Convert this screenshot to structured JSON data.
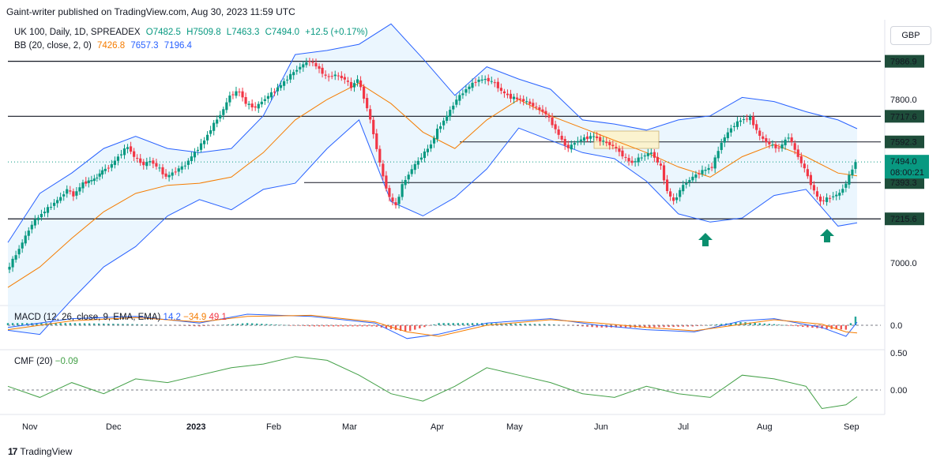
{
  "header": {
    "published": "Gaint-writer published on TradingView.com, Aug 30, 2023 11:59 UTC"
  },
  "legend": {
    "symbol": "UK 100, Daily, 1D, SPREADEX",
    "open": "O7482.5",
    "high": "H7509.8",
    "low": "L7463.3",
    "close": "C7494.0",
    "change": "+12.5 (+0.17%)",
    "bb_label": "BB (20, close, 2, 0)",
    "bb_basis": "7426.8",
    "bb_upper": "7657.3",
    "bb_lower": "7196.4"
  },
  "currency": "GBP",
  "macd_legend": {
    "label": "MACD (12, 26, close, 9, EMA, EMA)",
    "macd": "14.2",
    "signal": "−34.9",
    "hist": "49.1"
  },
  "cmf_legend": {
    "label": "CMF (20)",
    "value": "−0.09"
  },
  "footer": {
    "brand": "TradingView",
    "logo": "17"
  },
  "colors": {
    "up": "#089981",
    "down": "#f23645",
    "bb_fill": "#e3f2fd",
    "bb_band": "#2962ff",
    "bb_basis": "#f57c00",
    "cmf": "#43a047"
  },
  "arrows": [
    "up-arrow-icon",
    "up-arrow-icon"
  ],
  "chart_data": {
    "type": "line",
    "y_ticks": [
      "7800.0",
      "7000.0"
    ],
    "level_labels": [
      "7986.9",
      "7717.6",
      "7592.3",
      "7393.3",
      "7215.6"
    ],
    "current_price": "7494.0",
    "countdown": "08:00:21",
    "x_ticks": [
      "Nov",
      "Dec",
      "2023",
      "Feb",
      "Mar",
      "Apr",
      "May",
      "Jun",
      "Jul",
      "Aug",
      "Sep"
    ],
    "macd_ticks": [
      "0.0"
    ],
    "cmf_ticks": [
      "0.50",
      "0.00"
    ],
    "price_path": [
      [
        0,
        6960
      ],
      [
        6,
        7040
      ],
      [
        10,
        7100
      ],
      [
        16,
        7190
      ],
      [
        22,
        7240
      ],
      [
        28,
        7280
      ],
      [
        34,
        7320
      ],
      [
        38,
        7360
      ],
      [
        42,
        7330
      ],
      [
        48,
        7390
      ],
      [
        55,
        7410
      ],
      [
        60,
        7450
      ],
      [
        66,
        7480
      ],
      [
        70,
        7520
      ],
      [
        76,
        7570
      ],
      [
        80,
        7520
      ],
      [
        86,
        7480
      ],
      [
        90,
        7500
      ],
      [
        96,
        7460
      ],
      [
        100,
        7420
      ],
      [
        106,
        7450
      ],
      [
        112,
        7480
      ],
      [
        118,
        7540
      ],
      [
        124,
        7600
      ],
      [
        130,
        7680
      ],
      [
        136,
        7750
      ],
      [
        140,
        7820
      ],
      [
        146,
        7840
      ],
      [
        150,
        7780
      ],
      [
        156,
        7760
      ],
      [
        160,
        7790
      ],
      [
        166,
        7830
      ],
      [
        172,
        7870
      ],
      [
        178,
        7920
      ],
      [
        184,
        7960
      ],
      [
        190,
        7990
      ],
      [
        196,
        7950
      ],
      [
        200,
        7910
      ],
      [
        206,
        7920
      ],
      [
        212,
        7900
      ],
      [
        216,
        7860
      ],
      [
        220,
        7900
      ],
      [
        224,
        7810
      ],
      [
        228,
        7700
      ],
      [
        232,
        7560
      ],
      [
        236,
        7420
      ],
      [
        240,
        7320
      ],
      [
        244,
        7280
      ],
      [
        248,
        7380
      ],
      [
        254,
        7460
      ],
      [
        260,
        7520
      ],
      [
        266,
        7580
      ],
      [
        270,
        7650
      ],
      [
        276,
        7720
      ],
      [
        282,
        7800
      ],
      [
        288,
        7850
      ],
      [
        294,
        7890
      ],
      [
        300,
        7900
      ],
      [
        306,
        7880
      ],
      [
        310,
        7840
      ],
      [
        316,
        7810
      ],
      [
        322,
        7800
      ],
      [
        328,
        7780
      ],
      [
        332,
        7760
      ],
      [
        338,
        7730
      ],
      [
        342,
        7680
      ],
      [
        348,
        7600
      ],
      [
        352,
        7560
      ],
      [
        356,
        7590
      ],
      [
        362,
        7610
      ],
      [
        368,
        7620
      ],
      [
        372,
        7600
      ],
      [
        378,
        7580
      ],
      [
        382,
        7560
      ],
      [
        388,
        7510
      ],
      [
        392,
        7490
      ],
      [
        398,
        7520
      ],
      [
        404,
        7540
      ],
      [
        410,
        7470
      ],
      [
        414,
        7350
      ],
      [
        418,
        7300
      ],
      [
        424,
        7380
      ],
      [
        430,
        7420
      ],
      [
        436,
        7450
      ],
      [
        442,
        7470
      ],
      [
        448,
        7590
      ],
      [
        454,
        7660
      ],
      [
        460,
        7700
      ],
      [
        466,
        7710
      ],
      [
        472,
        7620
      ],
      [
        478,
        7580
      ],
      [
        484,
        7560
      ],
      [
        490,
        7620
      ],
      [
        496,
        7520
      ],
      [
        500,
        7460
      ],
      [
        506,
        7350
      ],
      [
        510,
        7300
      ],
      [
        516,
        7320
      ],
      [
        522,
        7340
      ],
      [
        526,
        7390
      ],
      [
        530,
        7460
      ],
      [
        532,
        7494
      ]
    ],
    "basis_path": [
      [
        0,
        6880
      ],
      [
        20,
        6980
      ],
      [
        40,
        7120
      ],
      [
        60,
        7250
      ],
      [
        80,
        7340
      ],
      [
        100,
        7380
      ],
      [
        120,
        7390
      ],
      [
        140,
        7420
      ],
      [
        160,
        7540
      ],
      [
        180,
        7700
      ],
      [
        200,
        7800
      ],
      [
        220,
        7880
      ],
      [
        240,
        7780
      ],
      [
        260,
        7640
      ],
      [
        280,
        7560
      ],
      [
        300,
        7700
      ],
      [
        320,
        7800
      ],
      [
        340,
        7720
      ],
      [
        360,
        7660
      ],
      [
        380,
        7600
      ],
      [
        400,
        7540
      ],
      [
        420,
        7470
      ],
      [
        440,
        7420
      ],
      [
        460,
        7520
      ],
      [
        480,
        7580
      ],
      [
        500,
        7520
      ],
      [
        520,
        7440
      ],
      [
        532,
        7426
      ]
    ],
    "upper_path": [
      [
        0,
        7100
      ],
      [
        20,
        7340
      ],
      [
        40,
        7440
      ],
      [
        60,
        7560
      ],
      [
        80,
        7620
      ],
      [
        100,
        7560
      ],
      [
        120,
        7540
      ],
      [
        140,
        7560
      ],
      [
        160,
        7720
      ],
      [
        180,
        8020
      ],
      [
        200,
        8040
      ],
      [
        220,
        8070
      ],
      [
        240,
        8170
      ],
      [
        260,
        8000
      ],
      [
        280,
        7820
      ],
      [
        300,
        7960
      ],
      [
        320,
        7900
      ],
      [
        340,
        7850
      ],
      [
        360,
        7700
      ],
      [
        380,
        7680
      ],
      [
        400,
        7650
      ],
      [
        420,
        7700
      ],
      [
        440,
        7720
      ],
      [
        460,
        7810
      ],
      [
        480,
        7790
      ],
      [
        500,
        7740
      ],
      [
        520,
        7700
      ],
      [
        532,
        7657
      ]
    ],
    "lower_path": [
      [
        0,
        6670
      ],
      [
        20,
        6650
      ],
      [
        40,
        6820
      ],
      [
        60,
        6980
      ],
      [
        80,
        7080
      ],
      [
        100,
        7230
      ],
      [
        120,
        7310
      ],
      [
        140,
        7260
      ],
      [
        160,
        7360
      ],
      [
        180,
        7390
      ],
      [
        200,
        7560
      ],
      [
        220,
        7700
      ],
      [
        240,
        7300
      ],
      [
        260,
        7230
      ],
      [
        280,
        7320
      ],
      [
        300,
        7460
      ],
      [
        320,
        7660
      ],
      [
        340,
        7600
      ],
      [
        360,
        7540
      ],
      [
        380,
        7510
      ],
      [
        400,
        7400
      ],
      [
        420,
        7240
      ],
      [
        440,
        7200
      ],
      [
        460,
        7220
      ],
      [
        480,
        7330
      ],
      [
        500,
        7360
      ],
      [
        520,
        7180
      ],
      [
        532,
        7196
      ]
    ],
    "macd_line": [
      [
        0,
        -10
      ],
      [
        40,
        30
      ],
      [
        80,
        40
      ],
      [
        120,
        10
      ],
      [
        150,
        50
      ],
      [
        190,
        40
      ],
      [
        230,
        10
      ],
      [
        250,
        -60
      ],
      [
        270,
        -40
      ],
      [
        300,
        10
      ],
      [
        340,
        30
      ],
      [
        370,
        0
      ],
      [
        400,
        -20
      ],
      [
        430,
        -30
      ],
      [
        460,
        20
      ],
      [
        480,
        30
      ],
      [
        510,
        -10
      ],
      [
        525,
        -50
      ],
      [
        532,
        14
      ]
    ],
    "signal_line": [
      [
        0,
        -20
      ],
      [
        40,
        20
      ],
      [
        80,
        35
      ],
      [
        120,
        15
      ],
      [
        150,
        40
      ],
      [
        190,
        45
      ],
      [
        230,
        15
      ],
      [
        250,
        -30
      ],
      [
        270,
        -50
      ],
      [
        300,
        0
      ],
      [
        340,
        25
      ],
      [
        370,
        10
      ],
      [
        400,
        -10
      ],
      [
        430,
        -25
      ],
      [
        460,
        5
      ],
      [
        480,
        25
      ],
      [
        510,
        5
      ],
      [
        525,
        -30
      ],
      [
        532,
        -35
      ]
    ],
    "cmf_line": [
      [
        0,
        0.05
      ],
      [
        20,
        -0.1
      ],
      [
        40,
        0.1
      ],
      [
        60,
        -0.05
      ],
      [
        80,
        0.15
      ],
      [
        100,
        0.1
      ],
      [
        120,
        0.2
      ],
      [
        140,
        0.3
      ],
      [
        160,
        0.35
      ],
      [
        180,
        0.45
      ],
      [
        200,
        0.4
      ],
      [
        220,
        0.2
      ],
      [
        240,
        -0.05
      ],
      [
        260,
        -0.15
      ],
      [
        280,
        0.05
      ],
      [
        300,
        0.3
      ],
      [
        320,
        0.2
      ],
      [
        340,
        0.1
      ],
      [
        360,
        -0.05
      ],
      [
        380,
        -0.1
      ],
      [
        400,
        0.05
      ],
      [
        420,
        -0.05
      ],
      [
        440,
        -0.1
      ],
      [
        460,
        0.2
      ],
      [
        480,
        0.15
      ],
      [
        500,
        0.05
      ],
      [
        510,
        -0.25
      ],
      [
        525,
        -0.2
      ],
      [
        532,
        -0.09
      ]
    ]
  }
}
